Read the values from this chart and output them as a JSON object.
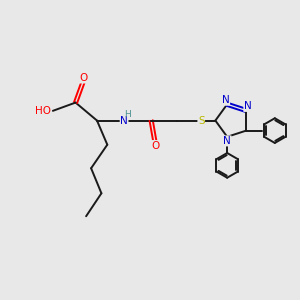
{
  "bg_color": "#e8e8e8",
  "bond_color": "#1a1a1a",
  "atom_colors": {
    "O": "#ff0000",
    "N": "#0000cc",
    "S": "#b8b800",
    "H": "#4a9090",
    "C": "#1a1a1a"
  },
  "figsize": [
    3.0,
    3.0
  ],
  "dpi": 100
}
